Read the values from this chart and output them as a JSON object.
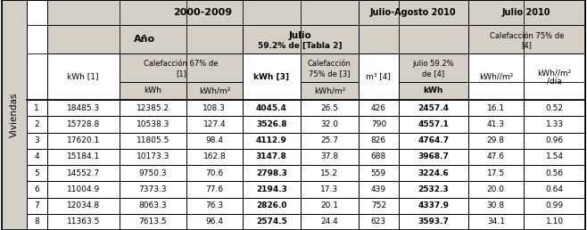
{
  "viviendas": [
    1,
    2,
    3,
    4,
    5,
    6,
    7,
    8
  ],
  "col1": [
    "18485.3",
    "15728.8",
    "17620.1",
    "15184.1",
    "14552.7",
    "11004.9",
    "12034.8",
    "11363.5"
  ],
  "col2_kwh": [
    "12385.2",
    "10538.3",
    "11805.5",
    "10173.3",
    "9750.3",
    "7373.3",
    "8063.3",
    "7613.5"
  ],
  "col2_kwm2": [
    "108.3",
    "127.4",
    "98.4",
    "162.8",
    "70.6",
    "77.6",
    "76.3",
    "96.4"
  ],
  "col3": [
    "4045.4",
    "3526.8",
    "4112.9",
    "3147.8",
    "2798.3",
    "2194.3",
    "2826.0",
    "2574.5"
  ],
  "col4": [
    "26.5",
    "32.0",
    "25.7",
    "37.8",
    "15.2",
    "17.3",
    "20.1",
    "24.4"
  ],
  "col5_m3": [
    "426",
    "790",
    "826",
    "688",
    "559",
    "439",
    "752",
    "623"
  ],
  "col6": [
    "2457.4",
    "4557.1",
    "4764.7",
    "3968.7",
    "3224.6",
    "2532.3",
    "4337.9",
    "3593.7"
  ],
  "col7": [
    "16.1",
    "41.3",
    "29.8",
    "47.6",
    "17.5",
    "20.0",
    "30.8",
    "34.1"
  ],
  "col8": [
    "0.52",
    "1.33",
    "0.96",
    "1.54",
    "0.56",
    "0.64",
    "0.99",
    "1.10"
  ],
  "bg_header": "#d4d0c8",
  "bg_white": "#ffffff",
  "border_color": "#000000",
  "figw": 6.58,
  "figh": 2.58,
  "dpi": 100
}
